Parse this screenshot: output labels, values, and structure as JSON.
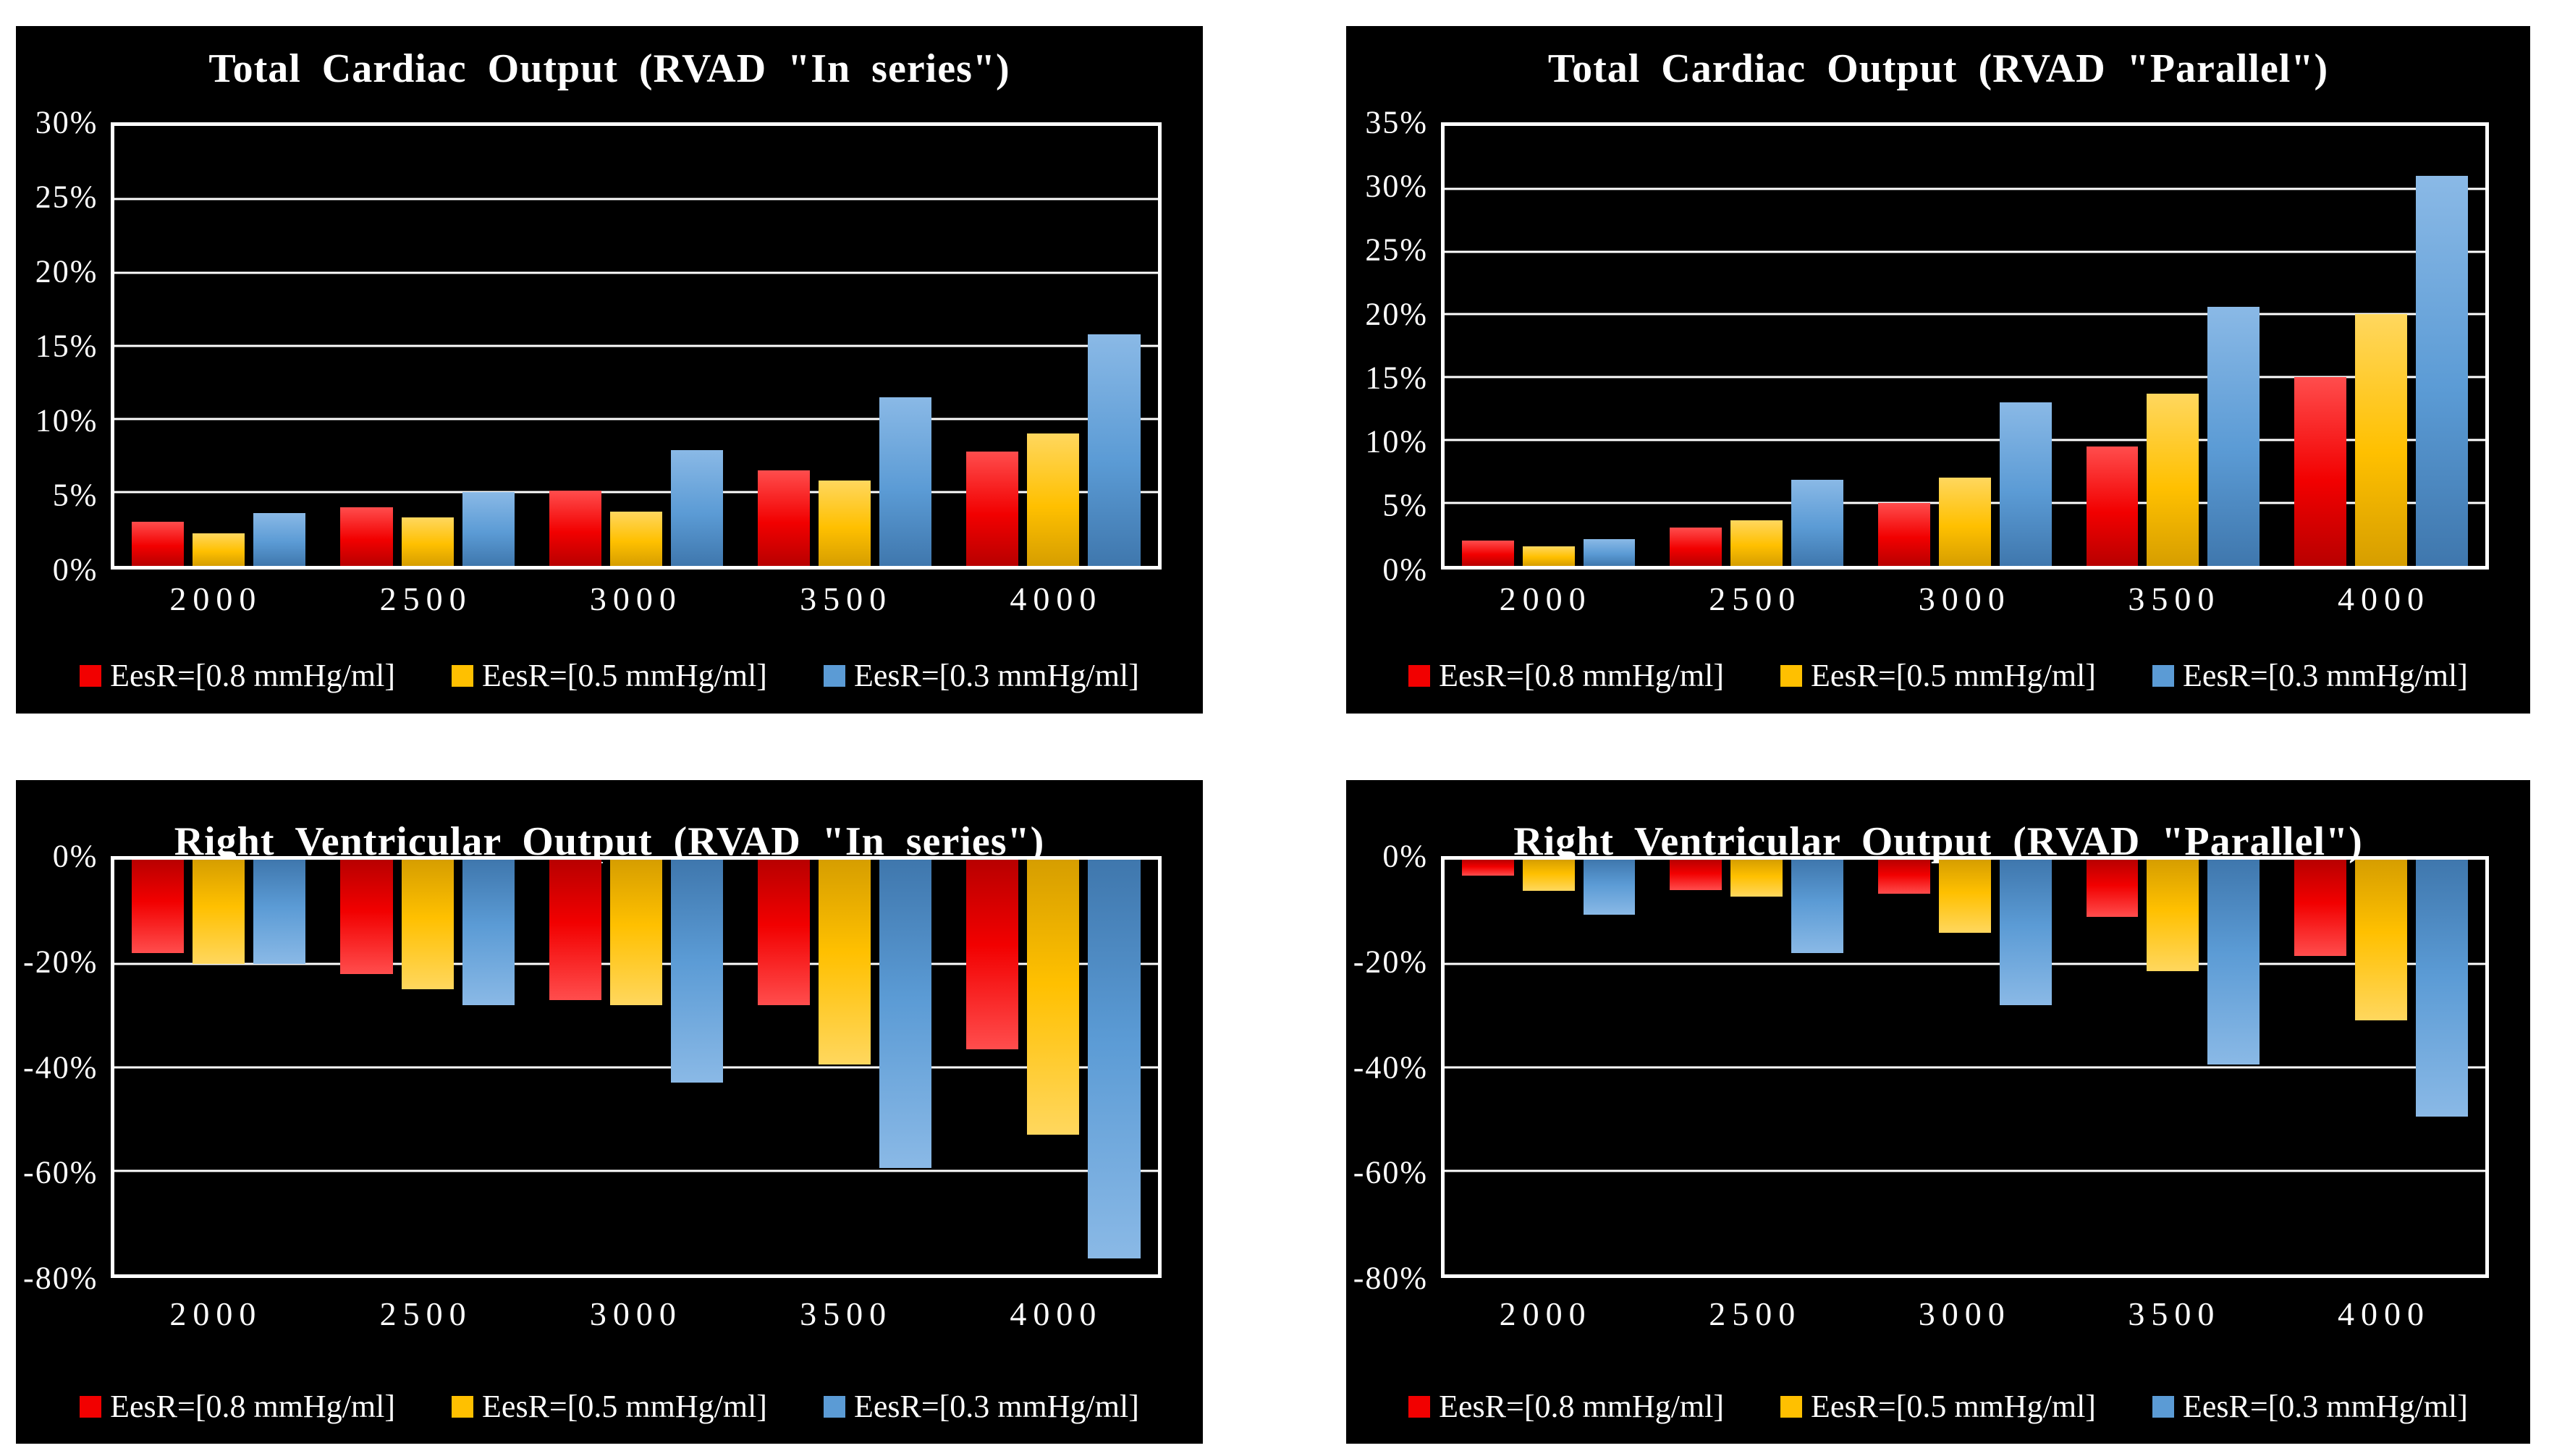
{
  "page": {
    "background": "#ffffff",
    "panel_background": "#000000",
    "text_color": "#ffffff",
    "axis_color": "#ffffff"
  },
  "chart_data": [
    {
      "type": "bar",
      "title": "Total Cardiac Output (RVAD \"In series\")",
      "categories": [
        "2000",
        "2500",
        "3000",
        "3500",
        "4000"
      ],
      "series": [
        {
          "name": "EesR=[0.8 mmHg/ml]",
          "color": "#f20000",
          "color_light": "#ff4d4d",
          "color_dark": "#b80000",
          "values": [
            3.0,
            4.0,
            5.1,
            6.5,
            7.8
          ]
        },
        {
          "name": "EesR=[0.5 mmHg/ml]",
          "color": "#ffc000",
          "color_light": "#ffd75e",
          "color_dark": "#d69e00",
          "values": [
            2.2,
            3.3,
            3.7,
            5.8,
            9.0
          ]
        },
        {
          "name": "EesR=[0.3 mmHg/ml]",
          "color": "#5b9bd5",
          "color_light": "#8ab9e6",
          "color_dark": "#3f77ad",
          "values": [
            3.6,
            5.0,
            7.9,
            11.5,
            15.8
          ]
        }
      ],
      "ylim": [
        0,
        30
      ],
      "y_step": 5,
      "y_tick_labels": [
        "30%",
        "25%",
        "20%",
        "15%",
        "10%",
        "5%",
        "0%"
      ],
      "xlabel": "",
      "ylabel": "",
      "grid": true,
      "legend_position": "bottom"
    },
    {
      "type": "bar",
      "title": "Total Cardiac Output (RVAD \"Parallel\")",
      "categories": [
        "2000",
        "2500",
        "3000",
        "3500",
        "4000"
      ],
      "series": [
        {
          "name": "EesR=[0.8 mmHg/ml]",
          "color": "#f20000",
          "color_light": "#ff4d4d",
          "color_dark": "#b80000",
          "values": [
            2.0,
            3.0,
            5.0,
            9.5,
            15.0
          ]
        },
        {
          "name": "EesR=[0.5 mmHg/ml]",
          "color": "#ffc000",
          "color_light": "#ffd75e",
          "color_dark": "#d69e00",
          "values": [
            1.5,
            3.6,
            7.0,
            13.7,
            20.0
          ]
        },
        {
          "name": "EesR=[0.3 mmHg/ml]",
          "color": "#5b9bd5",
          "color_light": "#8ab9e6",
          "color_dark": "#3f77ad",
          "values": [
            2.1,
            6.8,
            13.0,
            20.6,
            31.0
          ]
        }
      ],
      "ylim": [
        0,
        35
      ],
      "y_step": 5,
      "y_tick_labels": [
        "35%",
        "30%",
        "25%",
        "20%",
        "15%",
        "10%",
        "5%",
        "0%"
      ],
      "xlabel": "",
      "ylabel": "",
      "grid": true,
      "legend_position": "bottom"
    },
    {
      "type": "bar",
      "title": "Right Ventricular Output (RVAD \"In series\")",
      "categories": [
        "2000",
        "2500",
        "3000",
        "3500",
        "4000"
      ],
      "series": [
        {
          "name": "EesR=[0.8 mmHg/ml]",
          "color": "#f20000",
          "color_light": "#ff4d4d",
          "color_dark": "#b80000",
          "values": [
            -18.0,
            -22.0,
            -27.0,
            -28.0,
            -36.5
          ]
        },
        {
          "name": "EesR=[0.5 mmHg/ml]",
          "color": "#ffc000",
          "color_light": "#ffd75e",
          "color_dark": "#d69e00",
          "values": [
            -20.0,
            -25.0,
            -28.0,
            -39.5,
            -53.0
          ]
        },
        {
          "name": "EesR=[0.3 mmHg/ml]",
          "color": "#5b9bd5",
          "color_light": "#8ab9e6",
          "color_dark": "#3f77ad",
          "values": [
            -20.0,
            -28.0,
            -43.0,
            -59.5,
            -77.0
          ]
        }
      ],
      "ylim": [
        -80,
        0
      ],
      "y_step": 20,
      "y_tick_labels": [
        "0%",
        "-20%",
        "-40%",
        "-60%",
        "-80%"
      ],
      "xlabel": "",
      "ylabel": "",
      "grid": true,
      "legend_position": "bottom"
    },
    {
      "type": "bar",
      "title": "Right Ventricular Output (RVAD \"Parallel\")",
      "categories": [
        "2000",
        "2500",
        "3000",
        "3500",
        "4000"
      ],
      "series": [
        {
          "name": "EesR=[0.8 mmHg/ml]",
          "color": "#f20000",
          "color_light": "#ff4d4d",
          "color_dark": "#b80000",
          "values": [
            -3.0,
            -5.8,
            -6.5,
            -11.0,
            -18.5
          ]
        },
        {
          "name": "EesR=[0.5 mmHg/ml]",
          "color": "#ffc000",
          "color_light": "#ffd75e",
          "color_dark": "#d69e00",
          "values": [
            -6.0,
            -7.0,
            -14.0,
            -21.5,
            -31.0
          ]
        },
        {
          "name": "EesR=[0.3 mmHg/ml]",
          "color": "#5b9bd5",
          "color_light": "#8ab9e6",
          "color_dark": "#3f77ad",
          "values": [
            -10.5,
            -18.0,
            -28.0,
            -39.5,
            -49.5
          ]
        }
      ],
      "ylim": [
        -80,
        0
      ],
      "y_step": 20,
      "y_tick_labels": [
        "0%",
        "-20%",
        "-40%",
        "-60%",
        "-80%"
      ],
      "xlabel": "",
      "ylabel": "",
      "grid": true,
      "legend_position": "bottom"
    }
  ]
}
